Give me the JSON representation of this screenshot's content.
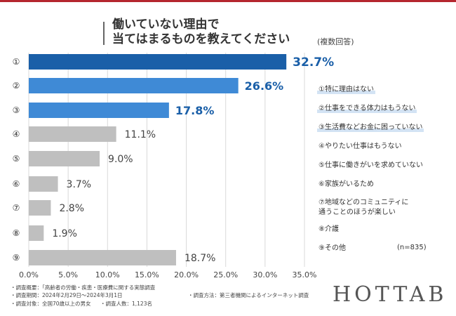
{
  "title": {
    "line1": "働いていない理由で",
    "line2": "当てはまるものを教えてください",
    "note": "(複数回答)"
  },
  "colors": {
    "accent_top": "#b5262e",
    "title_bar": "#666666",
    "bar_dark": "#1a5fa8",
    "bar_mid": "#3f8ad6",
    "bar_gray": "#bfbfbf",
    "label_blue": "#1a5fa8",
    "label_gray": "#444444",
    "highlight": "#d3e3f4"
  },
  "chart_data": {
    "type": "bar",
    "orientation": "horizontal",
    "categories": [
      "①",
      "②",
      "③",
      "④",
      "⑤",
      "⑥",
      "⑦",
      "⑧",
      "⑨"
    ],
    "values": [
      32.7,
      26.6,
      17.8,
      11.1,
      9.0,
      3.7,
      2.8,
      1.9,
      18.7
    ],
    "value_labels": [
      "32.7%",
      "26.6%",
      "17.8%",
      "11.1%",
      "9.0%",
      "3.7%",
      "2.8%",
      "1.9%",
      "18.7%"
    ],
    "xlim": [
      0,
      35
    ],
    "xticks": [
      0,
      5,
      10,
      15,
      20,
      25,
      30,
      35
    ],
    "xtick_labels": [
      "0.0%",
      "5.0%",
      "10.0%",
      "15.0%",
      "20.0%",
      "25.0%",
      "30.0%",
      "35.0%"
    ],
    "grid": true,
    "highlight_top": 3
  },
  "legend": [
    "①特に理由はない",
    "②仕事をできる体力はもうない",
    "③生活費などお金に困っていない",
    "④やりたい仕事はもうない",
    "⑤仕事に働きがいを求めていない",
    "⑥家族がいるため",
    "⑦地域などのコミュニティに",
    "通うことのほうが楽しい",
    "⑧介護",
    "⑨その他"
  ],
  "sample_size": "(n=835)",
  "notes": {
    "survey_summary": "・調査概要：「高齢者の労働・疾患・医療費に関する実態調査",
    "survey_period": "・調査期間：2024年2月29日〜2024年3月1日",
    "survey_target": "・調査対象：全国70歳以上の男女",
    "survey_count": "・調査人数：1,123名",
    "survey_method": "・調査方法：第三者機関によるインターネット調査"
  },
  "brand": "HOTTAB"
}
